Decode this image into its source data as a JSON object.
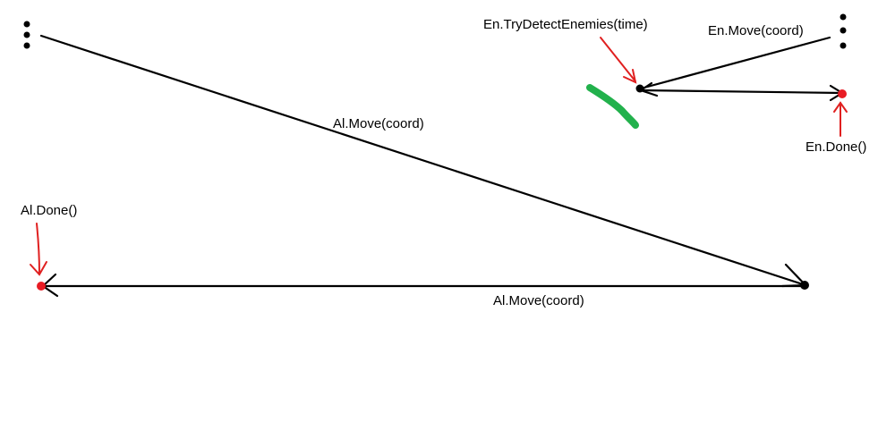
{
  "labels": {
    "ally_move_1": "Al.Move(coord)",
    "ally_move_2": "Al.Move(coord)",
    "ally_done": "Al.Done()",
    "enemy_detect": "En.TryDetectEnemies(time)",
    "enemy_move": "En.Move(coord)",
    "enemy_done": "En.Done()"
  },
  "colors": {
    "path_line": "#000000",
    "annotation_arrow": "#e02020",
    "done_dot": "#e81c24",
    "marker": "#22b14c"
  }
}
